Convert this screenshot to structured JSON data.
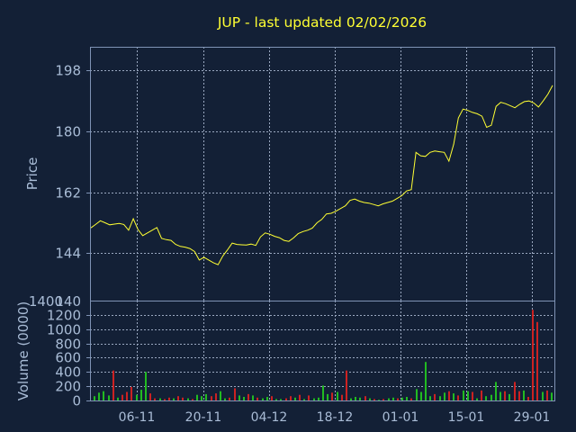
{
  "title": "JUP - last updated 02/02/2026",
  "colors": {
    "background": "#132036",
    "frame": "#7f93b5",
    "grid": "#9aa8c0",
    "text": "#a9bcd6",
    "title": "#ffff33",
    "price_line": "#ffff33",
    "volume_up": "#22bb22",
    "volume_down": "#cc2222"
  },
  "chart_data": [
    {
      "type": "line",
      "title": "JUP - last updated 02/02/2026",
      "ylabel": "Price",
      "ylim": [
        130,
        205
      ],
      "yticks": [
        198,
        180,
        162,
        144
      ],
      "y_bottom_label": "140",
      "x_tick_labels": [
        "06-11",
        "20-11",
        "04-12",
        "18-12",
        "01-01",
        "15-01",
        "29-01"
      ],
      "grid": true,
      "series": [
        {
          "values": [
            151.5,
            152.5,
            153.6,
            153.0,
            152.4,
            152.6,
            152.8,
            152.5,
            150.8,
            154.2,
            151.0,
            149.2,
            150.0,
            150.8,
            151.6,
            148.4,
            148.0,
            147.8,
            146.6,
            146.0,
            145.8,
            145.4,
            144.5,
            142.0,
            142.8,
            142.0,
            141.2,
            140.6,
            143.2,
            145.0,
            147.0,
            146.6,
            146.5,
            146.4,
            146.7,
            146.3,
            148.8,
            150.0,
            149.6,
            149.0,
            148.6,
            147.8,
            147.5,
            148.5,
            149.8,
            150.4,
            150.8,
            151.4,
            153.0,
            154.0,
            155.6,
            155.8,
            156.4,
            157.2,
            158.0,
            159.6,
            160.0,
            159.4,
            159.0,
            158.8,
            158.4,
            158.0,
            158.6,
            159.0,
            159.4,
            160.2,
            161.0,
            162.4,
            162.8,
            173.8,
            172.8,
            172.6,
            173.8,
            174.2,
            174.0,
            173.8,
            171.2,
            176.2,
            184.0,
            186.6,
            186.2,
            185.6,
            185.2,
            184.5,
            181.2,
            181.8,
            187.4,
            188.6,
            188.2,
            187.6,
            187.0,
            188.0,
            188.8,
            189.0,
            188.4,
            187.2,
            189.0,
            191.0,
            193.6
          ]
        }
      ]
    },
    {
      "type": "bar",
      "ylabel": "Volume (0000)",
      "ylim": [
        0,
        1400
      ],
      "yticks": [
        0,
        200,
        400,
        600,
        800,
        1000,
        1200
      ],
      "y_top_label": "1400",
      "series": [
        {
          "name": "volume",
          "values": [
            60,
            110,
            130,
            70,
            420,
            40,
            80,
            120,
            190,
            80,
            150,
            400,
            100,
            30,
            30,
            20,
            40,
            30,
            60,
            40,
            30,
            20,
            80,
            60,
            90,
            60,
            100,
            130,
            30,
            40,
            170,
            70,
            50,
            90,
            70,
            40,
            30,
            50,
            60,
            20,
            20,
            30,
            60,
            40,
            80,
            20,
            70,
            30,
            40,
            210,
            90,
            110,
            120,
            80,
            420,
            30,
            50,
            40,
            60,
            30,
            20,
            10,
            20,
            30,
            40,
            30,
            40,
            50,
            30,
            160,
            120,
            540,
            60,
            90,
            60,
            110,
            130,
            100,
            70,
            140,
            130,
            120,
            30,
            140,
            60,
            80,
            260,
            120,
            130,
            90,
            260,
            130,
            140,
            50,
            1270,
            1100,
            120,
            140,
            110
          ],
          "colors": [
            "up",
            "up",
            "up",
            "up",
            "down",
            "up",
            "down",
            "down",
            "down",
            "up",
            "up",
            "up",
            "down",
            "down",
            "up",
            "down",
            "down",
            "up",
            "down",
            "down",
            "up",
            "down",
            "up",
            "up",
            "up",
            "down",
            "down",
            "up",
            "up",
            "down",
            "down",
            "up",
            "up",
            "down",
            "up",
            "down",
            "up",
            "up",
            "down",
            "up",
            "up",
            "down",
            "down",
            "up",
            "down",
            "up",
            "down",
            "up",
            "up",
            "up",
            "up",
            "down",
            "up",
            "down",
            "down",
            "up",
            "up",
            "up",
            "down",
            "up",
            "down",
            "up",
            "down",
            "up",
            "up",
            "down",
            "up",
            "up",
            "down",
            "up",
            "up",
            "up",
            "up",
            "down",
            "up",
            "up",
            "down",
            "up",
            "down",
            "up",
            "up",
            "down",
            "up",
            "down",
            "up",
            "up",
            "up",
            "up",
            "down",
            "up",
            "down",
            "down",
            "up",
            "down",
            "down",
            "down",
            "up",
            "down",
            "up"
          ]
        }
      ]
    }
  ]
}
